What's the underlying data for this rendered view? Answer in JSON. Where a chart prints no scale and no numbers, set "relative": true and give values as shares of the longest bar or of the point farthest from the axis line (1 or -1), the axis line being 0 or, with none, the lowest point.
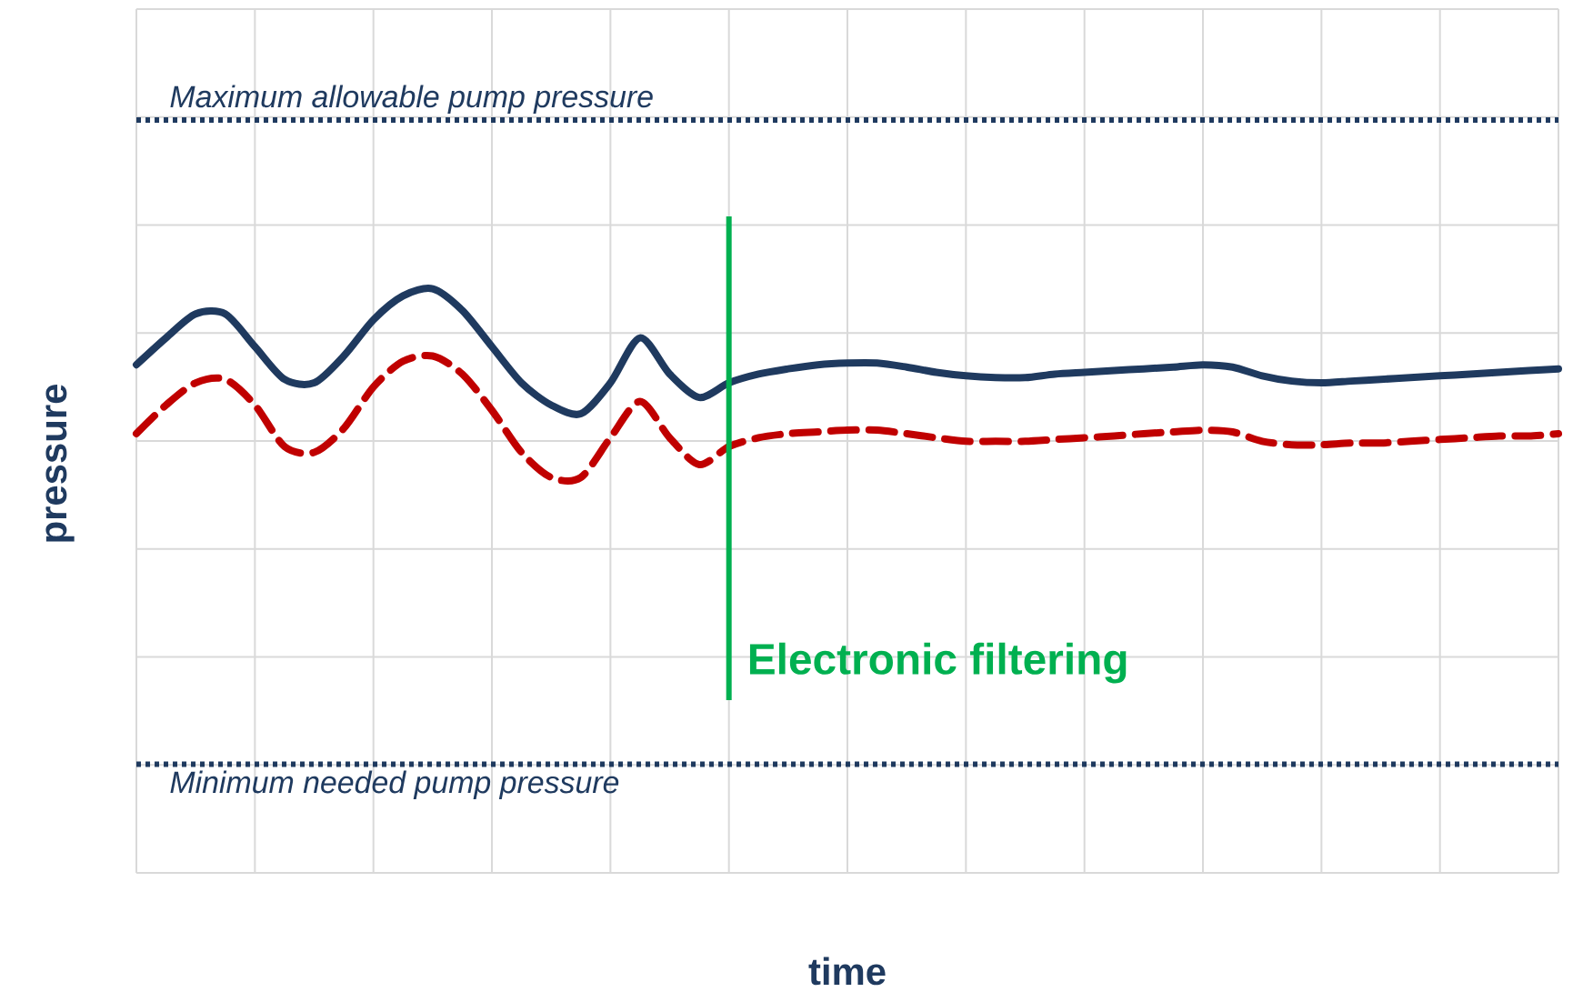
{
  "chart_data": {
    "type": "line",
    "relative": true,
    "xlabel": "time",
    "ylabel": "pressure",
    "grid": true,
    "tick_labels": false,
    "annotations": [
      "Electronic filtering"
    ],
    "categories": [
      null,
      null,
      null,
      null,
      null,
      null,
      null,
      null,
      null,
      null,
      null,
      null,
      null,
      null,
      null,
      null,
      null,
      null,
      null,
      null,
      null,
      null,
      null,
      null,
      null,
      null,
      null,
      null,
      null,
      null,
      null,
      null,
      null,
      null,
      null,
      null,
      null,
      null,
      null,
      null,
      null,
      null,
      null,
      null,
      null,
      null,
      null,
      null,
      null
    ],
    "series": [
      {
        "color": "#1f3a5f",
        "line_style": "solid",
        "values": [
          0.87,
          0.916,
          0.957,
          0.957,
          0.901,
          0.845,
          0.839,
          0.885,
          0.947,
          0.988,
          1,
          0.963,
          0.901,
          0.839,
          0.801,
          0.786,
          0.839,
          0.916,
          0.854,
          0.814,
          0.839,
          0.854,
          0.863,
          0.87,
          0.873,
          0.873,
          0.866,
          0.857,
          0.851,
          0.848,
          0.848,
          0.854,
          0.857,
          0.86,
          0.863,
          0.866,
          0.87,
          0.866,
          0.851,
          0.842,
          0.839,
          0.842,
          0.845,
          0.848,
          0.851,
          0.854,
          0.857,
          0.86,
          0.863
        ]
      },
      {
        "color": "#c00000",
        "line_style": "dashed",
        "values": [
          0.752,
          0.801,
          0.839,
          0.845,
          0.801,
          0.73,
          0.72,
          0.761,
          0.832,
          0.876,
          0.885,
          0.854,
          0.792,
          0.72,
          0.677,
          0.677,
          0.745,
          0.807,
          0.745,
          0.699,
          0.73,
          0.745,
          0.752,
          0.755,
          0.758,
          0.758,
          0.752,
          0.745,
          0.739,
          0.739,
          0.739,
          0.742,
          0.745,
          0.748,
          0.752,
          0.755,
          0.758,
          0.755,
          0.739,
          0.733,
          0.733,
          0.736,
          0.736,
          0.739,
          0.742,
          0.745,
          0.748,
          0.748,
          0.752
        ]
      }
    ],
    "ref_lines": [
      {
        "axis": "y",
        "value": 1.289,
        "label": "Maximum allowable pump pressure",
        "color": "#1f3a5f",
        "line_style": "dotted"
      },
      {
        "axis": "y",
        "value": 0.186,
        "label": "Minimum needed pump pressure",
        "color": "#1f3a5f",
        "line_style": "dotted"
      }
    ]
  }
}
